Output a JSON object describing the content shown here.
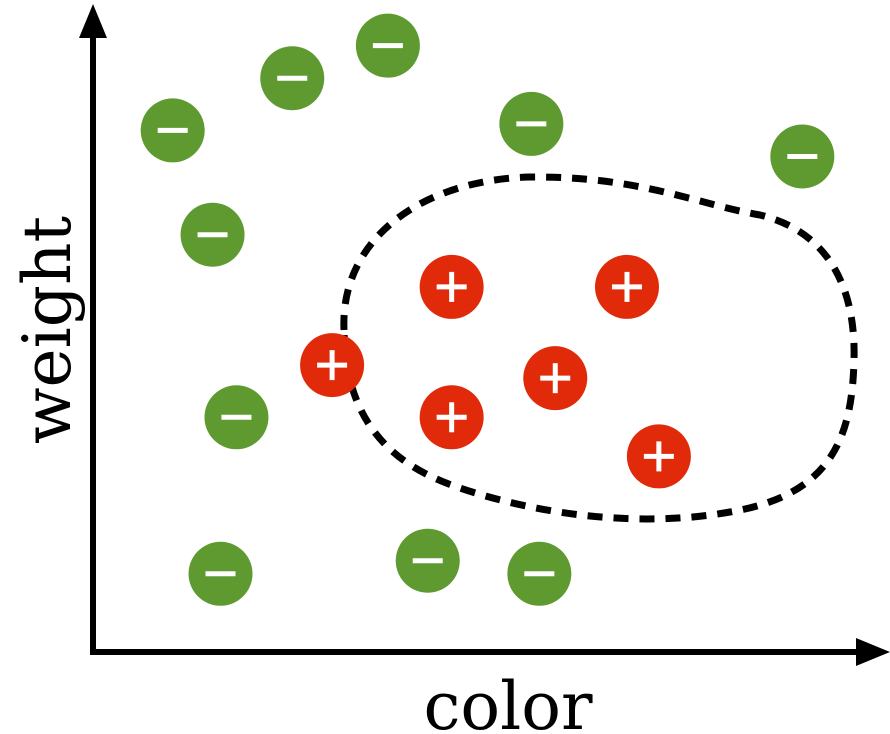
{
  "axes": {
    "x_label": "color",
    "y_label": "weight"
  },
  "colors": {
    "axis": "#000000",
    "negative": "#5f9a31",
    "positive": "#e02a0a",
    "boundary": "#000000",
    "glyph": "#ffffff"
  },
  "points": [
    {
      "class": "negative",
      "color": 0.1,
      "weight": 0.8
    },
    {
      "class": "negative",
      "color": 0.25,
      "weight": 0.88
    },
    {
      "class": "negative",
      "color": 0.37,
      "weight": 0.93
    },
    {
      "class": "negative",
      "color": 0.55,
      "weight": 0.81
    },
    {
      "class": "negative",
      "color": 0.89,
      "weight": 0.76
    },
    {
      "class": "negative",
      "color": 0.15,
      "weight": 0.64
    },
    {
      "class": "negative",
      "color": 0.18,
      "weight": 0.36
    },
    {
      "class": "negative",
      "color": 0.16,
      "weight": 0.12
    },
    {
      "class": "negative",
      "color": 0.42,
      "weight": 0.14
    },
    {
      "class": "negative",
      "color": 0.56,
      "weight": 0.12
    },
    {
      "class": "positive",
      "color": 0.45,
      "weight": 0.56
    },
    {
      "class": "positive",
      "color": 0.67,
      "weight": 0.56
    },
    {
      "class": "positive",
      "color": 0.3,
      "weight": 0.44
    },
    {
      "class": "positive",
      "color": 0.58,
      "weight": 0.42
    },
    {
      "class": "positive",
      "color": 0.45,
      "weight": 0.36
    },
    {
      "class": "positive",
      "color": 0.71,
      "weight": 0.3
    }
  ]
}
